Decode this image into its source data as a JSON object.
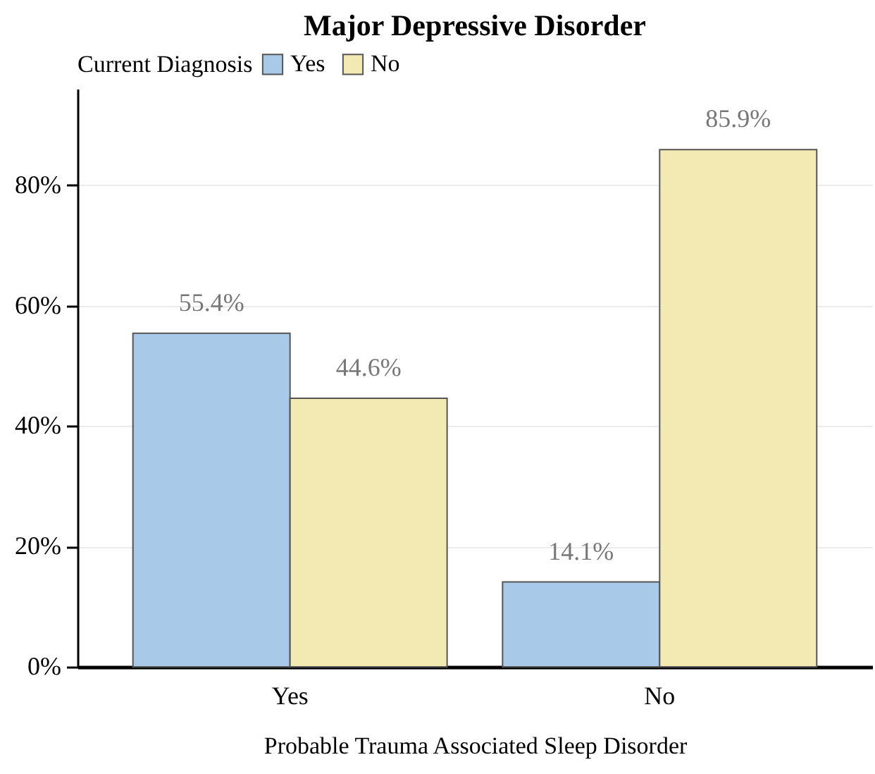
{
  "chart_data": {
    "type": "bar",
    "title": "Major Depressive Disorder",
    "xlabel": "Probable Trauma Associated Sleep Disorder",
    "legend_title": "Current Diagnosis",
    "categories": [
      "Yes",
      "No"
    ],
    "series": [
      {
        "name": "Yes",
        "color": "#a9c9e9",
        "values": [
          55.4,
          14.1
        ],
        "value_labels": [
          "55.4%",
          "14.1%"
        ]
      },
      {
        "name": "No",
        "color": "#f3e9b2",
        "values": [
          44.6,
          85.9
        ],
        "value_labels": [
          "44.6%",
          "85.9%"
        ]
      }
    ],
    "ylim": [
      0,
      96
    ],
    "yticks": [
      {
        "value": 0,
        "label": "0%"
      },
      {
        "value": 20,
        "label": "20%"
      },
      {
        "value": 40,
        "label": "40%"
      },
      {
        "value": 60,
        "label": "60%"
      },
      {
        "value": 80,
        "label": "80%"
      }
    ],
    "grid": "y",
    "legend": "top"
  }
}
